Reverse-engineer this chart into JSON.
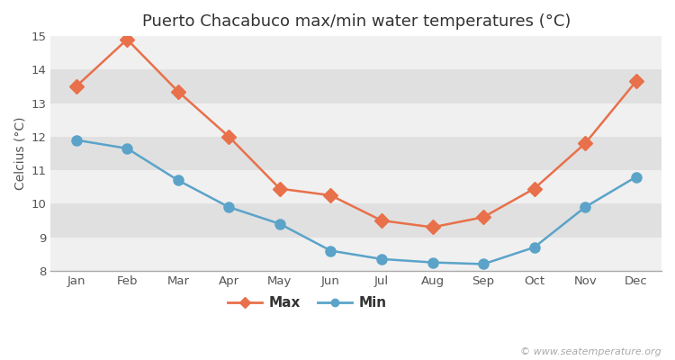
{
  "title": "Puerto Chacabuco max/min water temperatures (°C)",
  "ylabel": "Celcius (°C)",
  "months": [
    "Jan",
    "Feb",
    "Mar",
    "Apr",
    "May",
    "Jun",
    "Jul",
    "Aug",
    "Sep",
    "Oct",
    "Nov",
    "Dec"
  ],
  "max_values": [
    13.5,
    14.9,
    13.35,
    12.0,
    10.45,
    10.25,
    9.5,
    9.3,
    9.6,
    10.45,
    11.8,
    13.65
  ],
  "min_values": [
    11.9,
    11.65,
    10.7,
    9.9,
    9.4,
    8.6,
    8.35,
    8.25,
    8.2,
    8.7,
    9.9,
    10.8
  ],
  "max_color": "#E8704A",
  "min_color": "#5BA3C9",
  "figure_bg": "#ffffff",
  "plot_bg_light": "#f0f0f0",
  "plot_bg_dark": "#e0e0e0",
  "ylim": [
    8,
    15
  ],
  "yticks": [
    8,
    9,
    10,
    11,
    12,
    13,
    14,
    15
  ],
  "legend_labels": [
    "Max",
    "Min"
  ],
  "watermark": "© www.seatemperature.org",
  "title_fontsize": 13,
  "axis_label_fontsize": 10,
  "tick_fontsize": 9.5,
  "legend_fontsize": 11,
  "line_width": 1.8,
  "marker_size_max": 8,
  "marker_size_min": 8
}
